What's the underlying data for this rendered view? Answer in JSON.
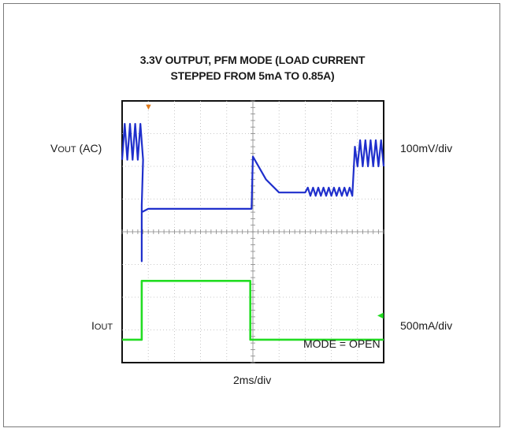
{
  "chart_data": {
    "type": "line",
    "title_line1": "3.3V OUTPUT, PFM MODE (LOAD CURRENT",
    "title_line2": "STEPPED FROM 5mA TO 0.85A)",
    "xlabel": "2ms/div",
    "annotation": "MODE = OPEN",
    "grid": true,
    "divisions": {
      "x": 10,
      "y": 8
    },
    "series": [
      {
        "name_main": "V",
        "name_sub": "OUT",
        "name_suffix": " (AC)",
        "scale": "100mV/div",
        "color": "#1f2fcc",
        "x_divs": [
          0,
          0.1,
          0.2,
          0.3,
          0.4,
          0.5,
          0.6,
          0.7,
          0.8,
          0.75,
          0.75,
          0.75,
          1.0,
          2.0,
          3.0,
          4.0,
          4.0,
          4.9,
          4.95,
          5.0,
          5.5,
          6.0,
          7.0,
          7.1,
          7.2,
          7.3,
          7.4,
          7.5,
          7.6,
          7.7,
          7.8,
          7.9,
          8.0,
          8.1,
          8.2,
          8.3,
          8.4,
          8.5,
          8.6,
          8.7,
          8.8,
          8.9,
          9.0,
          9.1,
          9.2,
          9.3,
          9.4,
          9.5,
          9.6,
          9.7,
          9.8,
          9.9,
          10.0
        ],
        "y_divs": [
          6.2,
          7.3,
          6.2,
          7.3,
          6.2,
          7.3,
          6.2,
          7.3,
          6.2,
          4.8,
          3.1,
          4.6,
          4.7,
          4.7,
          4.7,
          4.7,
          4.7,
          4.7,
          4.7,
          6.3,
          5.6,
          5.2,
          5.2,
          5.35,
          5.1,
          5.35,
          5.1,
          5.35,
          5.1,
          5.35,
          5.1,
          5.35,
          5.1,
          5.35,
          5.1,
          5.35,
          5.1,
          5.35,
          5.1,
          5.35,
          5.1,
          6.6,
          6.0,
          6.8,
          6.0,
          6.8,
          6.0,
          6.8,
          6.0,
          6.8,
          6.0,
          6.8,
          6.0
        ]
      },
      {
        "name_main": "I",
        "name_sub": "OUT",
        "name_suffix": "",
        "scale": "500mA/div",
        "color": "#22dd22",
        "x_divs": [
          0,
          0.75,
          0.75,
          4.9,
          4.9,
          10.0
        ],
        "y_divs": [
          0.7,
          0.7,
          2.5,
          2.5,
          0.7,
          0.7
        ]
      }
    ]
  }
}
